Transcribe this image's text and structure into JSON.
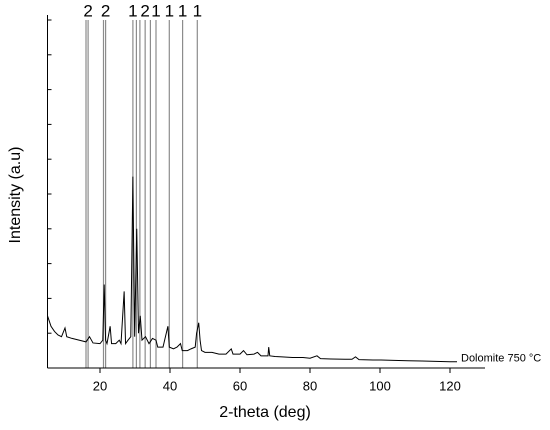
{
  "chart_data": {
    "type": "line",
    "x_label": "2-theta (deg)",
    "y_label": "Intensity (a.u)",
    "xlim": [
      5,
      130
    ],
    "ylim": [
      0,
      100
    ],
    "xticks": [
      20,
      40,
      60,
      80,
      100,
      120
    ],
    "yticks": [
      0,
      10,
      20,
      30,
      40,
      50,
      60,
      70,
      80,
      90,
      100
    ],
    "series": [
      {
        "name": "Dolomite 750 °C",
        "color": "#000000",
        "x": [
          5,
          6,
          7,
          8,
          9,
          10,
          10.5,
          12,
          14,
          16,
          17,
          18,
          20,
          20.8,
          21.2,
          21.6,
          22,
          22.9,
          23.3,
          24.5,
          25.5,
          26,
          26.9,
          27.3,
          28,
          28.8,
          29.4,
          29.9,
          30.5,
          31,
          31.5,
          32,
          33,
          34,
          35,
          36,
          36.5,
          38,
          39.4,
          39.8,
          41,
          42,
          43,
          43.5,
          45,
          46,
          47.2,
          47.6,
          48.2,
          48.6,
          49,
          50,
          52,
          54,
          56,
          57.5,
          58,
          60,
          61,
          62,
          64,
          65,
          66,
          68,
          68.2,
          68.5,
          70,
          72,
          75,
          78,
          80,
          82,
          83,
          86,
          90,
          92,
          93,
          94,
          98,
          100,
          104,
          108,
          112,
          116,
          120,
          122
        ],
        "values": [
          15,
          12,
          10.5,
          9.5,
          9,
          11.5,
          9,
          8.5,
          8,
          7.5,
          9,
          7.2,
          7,
          8,
          24,
          8,
          7,
          12,
          7,
          7,
          8,
          7,
          22,
          7,
          8,
          9,
          55,
          9,
          40,
          10,
          15,
          8,
          9,
          7,
          8.5,
          8,
          6,
          6,
          12,
          6,
          5.5,
          6,
          7,
          5,
          5,
          5.5,
          6,
          10,
          13,
          8,
          5,
          4.5,
          4.5,
          4,
          4,
          5.5,
          4,
          4,
          5,
          3.8,
          4,
          4.5,
          3.5,
          3.5,
          6,
          3.5,
          3.3,
          3.2,
          3,
          3,
          2.8,
          3.5,
          2.7,
          2.6,
          2.5,
          2.5,
          3.2,
          2.4,
          2.3,
          2.3,
          2.2,
          2.1,
          2,
          1.9,
          1.8,
          1.8
        ]
      }
    ],
    "reference_lines": [
      {
        "x": 16.0,
        "label": null
      },
      {
        "x": 16.6,
        "label": "2"
      },
      {
        "x": 21.0,
        "label": null
      },
      {
        "x": 21.6,
        "label": "2"
      },
      {
        "x": 29.4,
        "label": "1"
      },
      {
        "x": 30.4,
        "label": null
      },
      {
        "x": 31.4,
        "label": null
      },
      {
        "x": 32.9,
        "label": "2"
      },
      {
        "x": 34.4,
        "label": null
      },
      {
        "x": 36.0,
        "label": "1"
      },
      {
        "x": 39.8,
        "label": "1"
      },
      {
        "x": 43.6,
        "label": "1"
      },
      {
        "x": 47.8,
        "label": "1"
      }
    ]
  }
}
